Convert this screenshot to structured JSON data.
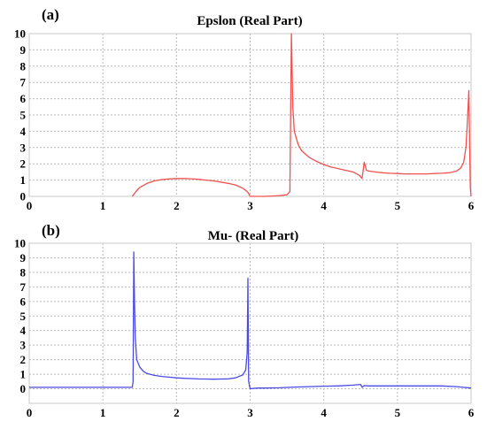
{
  "chart_data": [
    {
      "type": "line",
      "panel_label": "(a)",
      "title": "Epslon (Real Part)",
      "xlabel": "",
      "ylabel": "",
      "xlim": [
        0,
        6
      ],
      "ylim": [
        0,
        10
      ],
      "x_ticks": [
        0,
        1,
        2,
        3,
        4,
        5,
        6
      ],
      "y_ticks": [
        0,
        1,
        2,
        3,
        4,
        5,
        6,
        7,
        8,
        9,
        10
      ],
      "grid": true,
      "color": "#f05050",
      "series": [
        {
          "x": [
            1.4,
            1.45,
            1.5,
            1.6,
            1.7,
            1.8,
            1.9,
            2.0,
            2.1,
            2.2,
            2.3,
            2.4,
            2.5,
            2.6,
            2.7,
            2.8,
            2.9,
            2.97,
            3.0,
            3.1,
            3.2,
            3.3,
            3.4,
            3.5,
            3.54,
            3.56,
            3.58,
            3.6,
            3.65,
            3.7,
            3.8,
            3.9,
            4.0,
            4.1,
            4.2,
            4.3,
            4.4,
            4.48,
            4.52,
            4.55,
            4.58,
            4.62,
            4.7,
            4.8,
            4.9,
            5.0,
            5.1,
            5.2,
            5.3,
            5.4,
            5.5,
            5.6,
            5.7,
            5.8,
            5.86,
            5.9,
            5.93,
            5.95,
            5.97,
            5.99,
            6.0
          ],
          "values": [
            0.0,
            0.3,
            0.55,
            0.8,
            0.95,
            1.03,
            1.07,
            1.1,
            1.1,
            1.08,
            1.05,
            1.0,
            0.95,
            0.88,
            0.8,
            0.7,
            0.5,
            0.25,
            0.0,
            0.0,
            0.0,
            0.02,
            0.05,
            0.1,
            0.3,
            10.0,
            5.5,
            4.0,
            3.2,
            2.8,
            2.4,
            2.15,
            1.95,
            1.8,
            1.7,
            1.6,
            1.5,
            1.3,
            1.1,
            2.1,
            1.6,
            1.55,
            1.5,
            1.45,
            1.42,
            1.4,
            1.38,
            1.38,
            1.38,
            1.38,
            1.4,
            1.42,
            1.45,
            1.55,
            1.75,
            2.1,
            3.0,
            4.5,
            6.5,
            0.5,
            0.0
          ]
        }
      ]
    },
    {
      "type": "line",
      "panel_label": "(b)",
      "title": "Mu- (Real Part)",
      "xlabel": "",
      "ylabel": "",
      "xlim": [
        0,
        6
      ],
      "ylim": [
        -1,
        10
      ],
      "x_ticks": [
        0,
        1,
        2,
        3,
        4,
        5,
        6
      ],
      "y_ticks": [
        0,
        1,
        2,
        3,
        4,
        5,
        6,
        7,
        8,
        9,
        10
      ],
      "grid": true,
      "color": "#4a4ae6",
      "series": [
        {
          "x": [
            0.0,
            0.5,
            1.0,
            1.2,
            1.35,
            1.4,
            1.41,
            1.42,
            1.43,
            1.44,
            1.46,
            1.5,
            1.55,
            1.6,
            1.7,
            1.8,
            1.9,
            2.0,
            2.1,
            2.2,
            2.3,
            2.4,
            2.5,
            2.6,
            2.7,
            2.8,
            2.9,
            2.94,
            2.96,
            2.97,
            2.975,
            2.98,
            3.0,
            3.1,
            3.2,
            3.4,
            3.6,
            3.8,
            4.0,
            4.2,
            4.4,
            4.5,
            4.52,
            4.55,
            4.6,
            4.8,
            5.0,
            5.2,
            5.4,
            5.6,
            5.8,
            5.9,
            6.0
          ],
          "values": [
            0.1,
            0.1,
            0.1,
            0.1,
            0.1,
            0.1,
            0.5,
            9.4,
            6.0,
            3.5,
            2.0,
            1.5,
            1.2,
            1.05,
            0.92,
            0.85,
            0.8,
            0.75,
            0.72,
            0.7,
            0.68,
            0.67,
            0.66,
            0.67,
            0.68,
            0.75,
            0.95,
            1.3,
            2.5,
            7.6,
            4.0,
            0.5,
            0.0,
            0.05,
            0.05,
            0.07,
            0.12,
            0.15,
            0.18,
            0.2,
            0.25,
            0.3,
            0.1,
            0.22,
            0.2,
            0.2,
            0.2,
            0.2,
            0.2,
            0.2,
            0.15,
            0.1,
            0.05
          ]
        }
      ]
    }
  ]
}
